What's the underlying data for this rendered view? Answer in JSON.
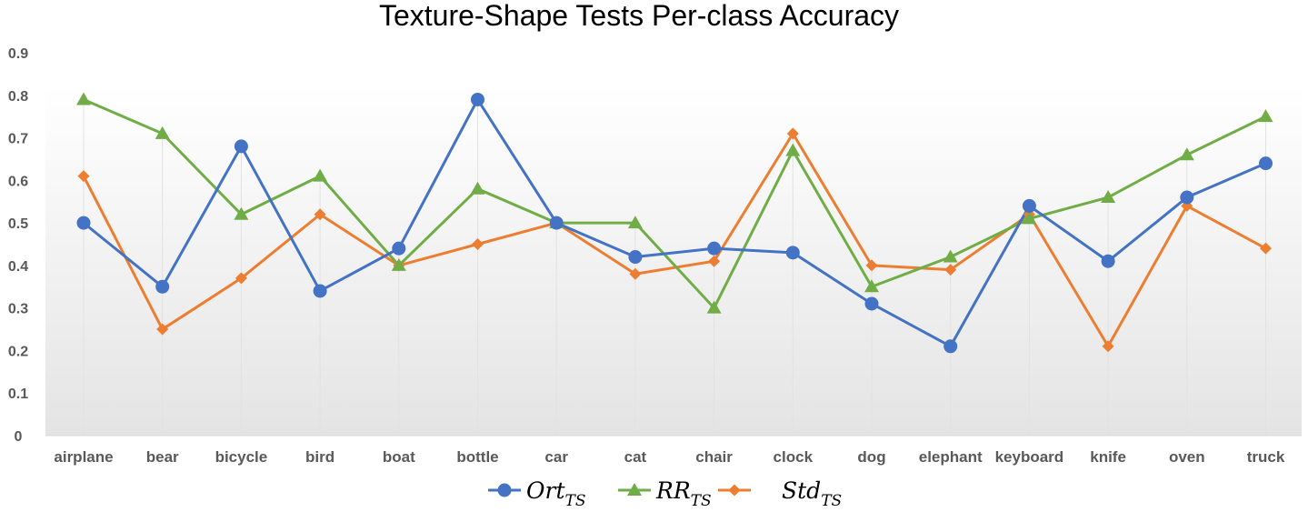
{
  "chart_data": {
    "type": "line",
    "title": "Texture-Shape Tests Per-class Accuracy",
    "xlabel": "",
    "ylabel": "",
    "ylim": [
      0,
      0.9
    ],
    "yticks": [
      "0",
      "0.1",
      "0.2",
      "0.3",
      "0.4",
      "0.5",
      "0.6",
      "0.7",
      "0.8",
      "0.9"
    ],
    "categories": [
      "airplane",
      "bear",
      "bicycle",
      "bird",
      "boat",
      "bottle",
      "car",
      "cat",
      "chair",
      "clock",
      "dog",
      "elephant",
      "keyboard",
      "knife",
      "oven",
      "truck"
    ],
    "series": [
      {
        "name": "Ort_TS",
        "label_main": "Ort",
        "label_sub": "TS",
        "color": "#4472C4",
        "marker": "circle",
        "values": [
          0.5,
          0.35,
          0.68,
          0.34,
          0.44,
          0.79,
          0.5,
          0.42,
          0.44,
          0.43,
          0.31,
          0.21,
          0.54,
          0.41,
          0.56,
          0.64
        ]
      },
      {
        "name": "RR_TS",
        "label_main": "RR",
        "label_sub": "TS",
        "color": "#70AD47",
        "marker": "triangle",
        "values": [
          0.79,
          0.71,
          0.52,
          0.61,
          0.4,
          0.58,
          0.5,
          0.5,
          0.3,
          0.67,
          0.35,
          0.42,
          0.51,
          0.56,
          0.66,
          0.75
        ]
      },
      {
        "name": "Std_TS",
        "label_main": "Std",
        "label_sub": "TS",
        "color": "#ED7D31",
        "marker": "diamond",
        "values": [
          0.61,
          0.25,
          0.37,
          0.52,
          0.4,
          0.45,
          0.5,
          0.38,
          0.41,
          0.71,
          0.4,
          0.39,
          0.52,
          0.21,
          0.54,
          0.44
        ]
      }
    ],
    "legend": "bottom",
    "grid": false
  }
}
